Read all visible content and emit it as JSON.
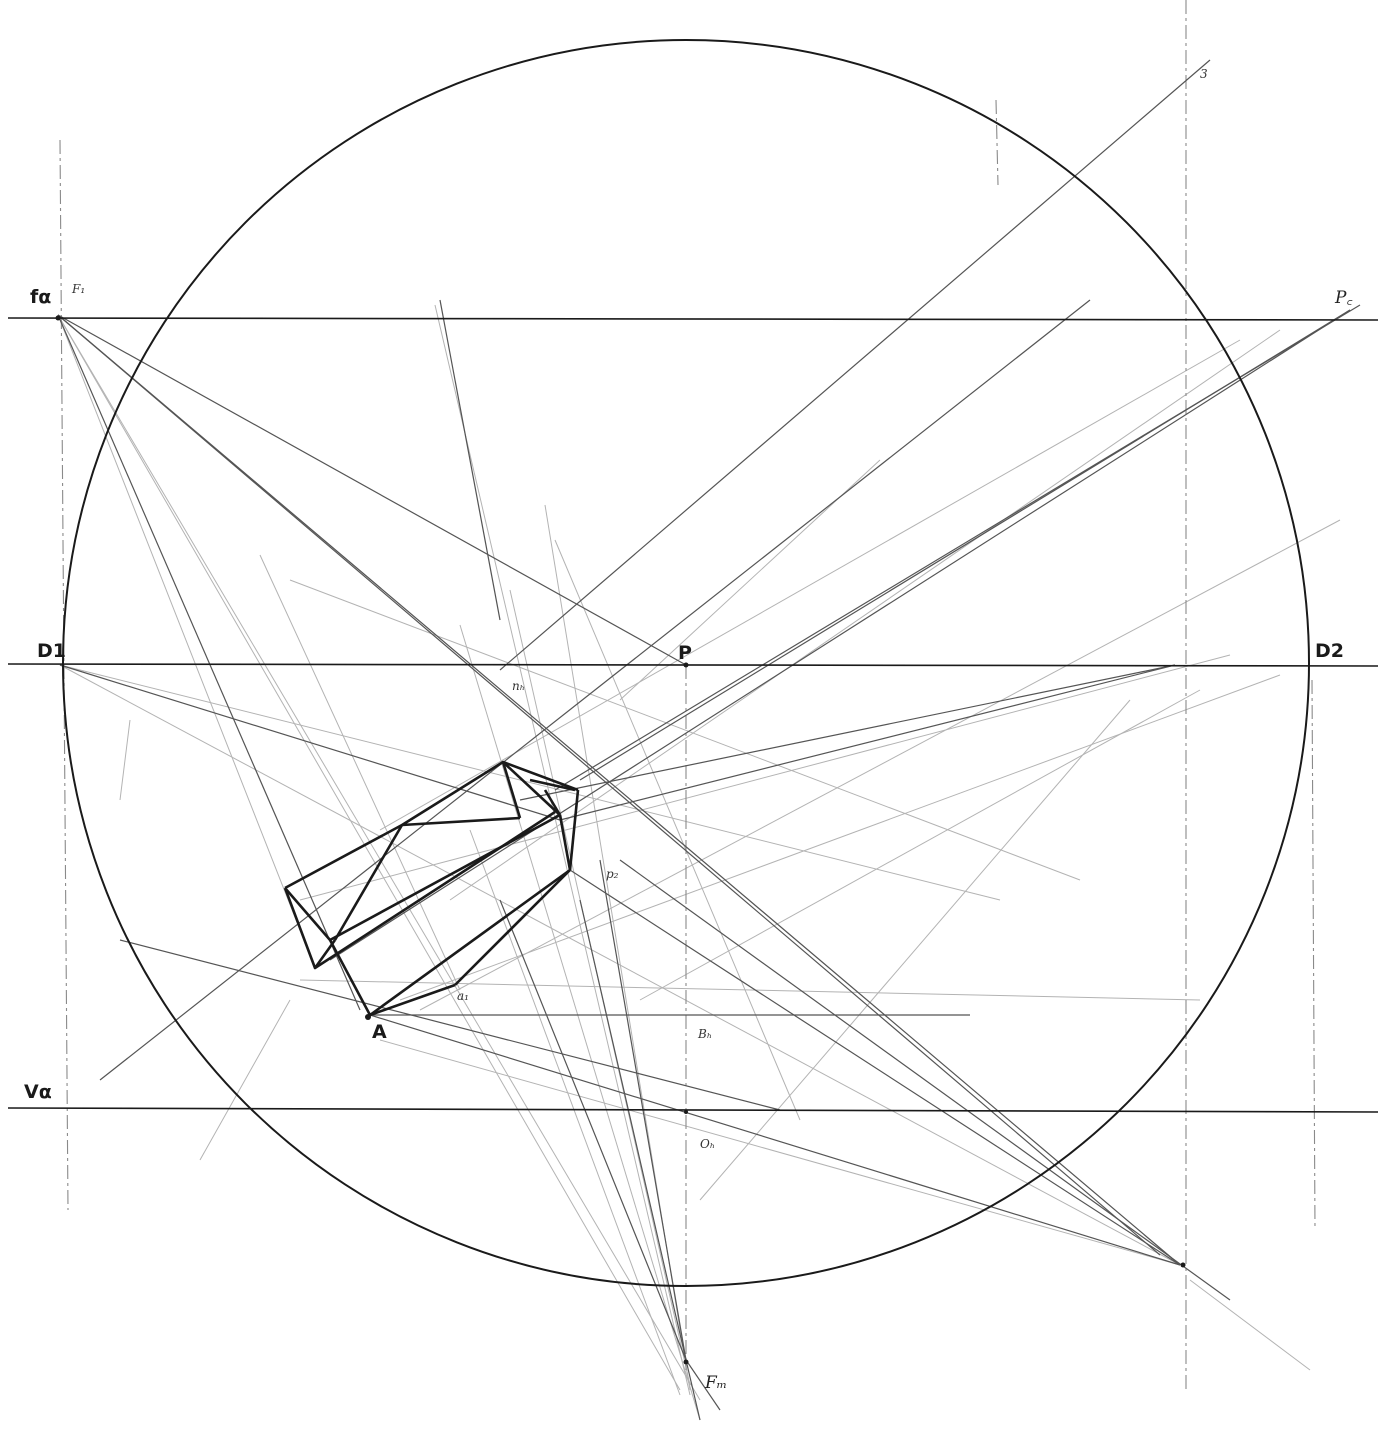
{
  "diagram": {
    "labels": {
      "f_alpha": "fα",
      "f_small": "F₁",
      "d1": "D1",
      "d2": "D2",
      "p": "P",
      "v_alpha": "Vα",
      "a": "A",
      "b_h": "Bₕ",
      "o_h": "Oₕ",
      "f_m": "Fₘ",
      "p_c": "P꜀",
      "n_h": "nₕ",
      "p_small": "p₂",
      "three": "3",
      "a_small": "a₁"
    },
    "colors": {
      "ink": "#1a1a1a",
      "construction": "#6a6a6a",
      "faint": "#a8a8a8",
      "background": "#ffffff"
    }
  }
}
